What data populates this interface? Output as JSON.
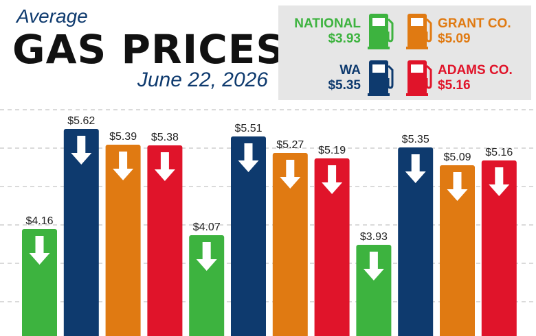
{
  "title": {
    "overline": "Average",
    "main": "GAS PRICES",
    "date": "June 22, 2026"
  },
  "legend": [
    {
      "name": "NATIONAL",
      "price": "$3.93",
      "color": "#3db33f",
      "icon": "gas-pump-icon"
    },
    {
      "name": "GRANT CO.",
      "price": "$5.09",
      "color": "#e07a12",
      "icon": "gas-pump-icon"
    },
    {
      "name": "WA",
      "price": "$5.35",
      "color": "#0e3a6e",
      "icon": "gas-pump-icon"
    },
    {
      "name": "ADAMS CO.",
      "price": "$5.16",
      "color": "#e0142a",
      "icon": "gas-pump-icon"
    }
  ],
  "chart_data": {
    "type": "bar",
    "grid": true,
    "ylim": [
      2.6,
      6.0
    ],
    "arrow_icon": "down-arrow-icon",
    "bars": [
      {
        "series": "NATIONAL",
        "value": 4.16,
        "label": "$4.16",
        "color": "#3db33f"
      },
      {
        "series": "WA",
        "value": 5.62,
        "label": "$5.62",
        "color": "#0e3a6e"
      },
      {
        "series": "GRANT CO.",
        "value": 5.39,
        "label": "$5.39",
        "color": "#e07a12"
      },
      {
        "series": "ADAMS CO.",
        "value": 5.38,
        "label": "$5.38",
        "color": "#e0142a"
      },
      {
        "series": "NATIONAL",
        "value": 4.07,
        "label": "$4.07",
        "color": "#3db33f"
      },
      {
        "series": "WA",
        "value": 5.51,
        "label": "$5.51",
        "color": "#0e3a6e"
      },
      {
        "series": "GRANT CO.",
        "value": 5.27,
        "label": "$5.27",
        "color": "#e07a12"
      },
      {
        "series": "ADAMS CO.",
        "value": 5.19,
        "label": "$5.19",
        "color": "#e0142a"
      },
      {
        "series": "NATIONAL",
        "value": 3.93,
        "label": "$3.93",
        "color": "#3db33f"
      },
      {
        "series": "WA",
        "value": 5.35,
        "label": "$5.35",
        "color": "#0e3a6e"
      },
      {
        "series": "GRANT CO.",
        "value": 5.09,
        "label": "$5.09",
        "color": "#e07a12"
      },
      {
        "series": "ADAMS CO.",
        "value": 5.16,
        "label": "$5.16",
        "color": "#e0142a"
      }
    ]
  }
}
